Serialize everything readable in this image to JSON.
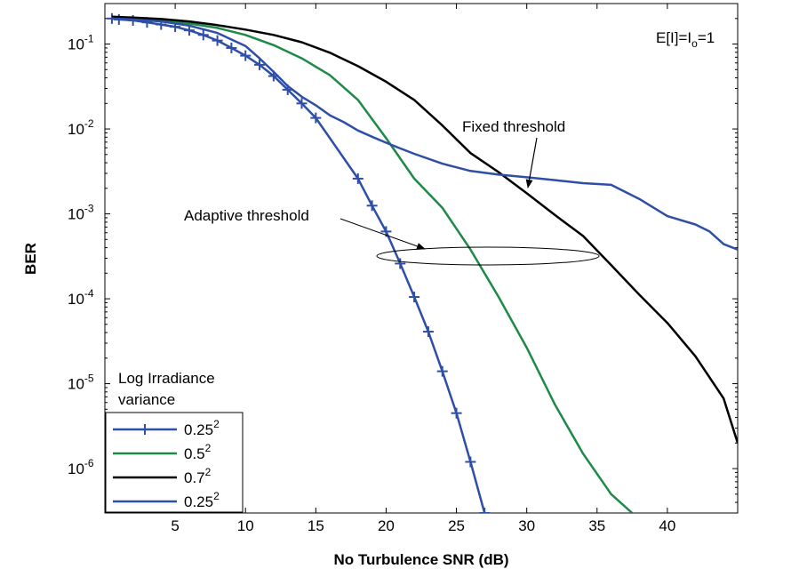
{
  "chart_data": {
    "type": "line",
    "xlabel": "No Turbulence SNR   (dB)",
    "ylabel": "BER",
    "xlim": [
      0,
      45
    ],
    "ylim": [
      3e-07,
      0.3
    ],
    "yscale": "log",
    "grid": false,
    "x_ticks": [
      5,
      10,
      15,
      20,
      25,
      30,
      35,
      40
    ],
    "y_ticks": [
      1e-06,
      1e-05,
      0.0001,
      0.001,
      0.01,
      0.1
    ],
    "legend": {
      "title_lines": [
        "Log Irradiance",
        "variance"
      ],
      "placement": "bottom-left"
    },
    "series": [
      {
        "name": "0.25",
        "name_exp": "2",
        "color": "#2e4fa5",
        "marker": "plus",
        "x": [
          0.5,
          1,
          2,
          3,
          4,
          5,
          6,
          7,
          8,
          9,
          10,
          11,
          12,
          13,
          14,
          15,
          18,
          19,
          20,
          21,
          22,
          23,
          24,
          25,
          26,
          27
        ],
        "y": [
          0.2,
          0.195,
          0.19,
          0.18,
          0.17,
          0.16,
          0.145,
          0.128,
          0.11,
          0.09,
          0.073,
          0.057,
          0.042,
          0.029,
          0.02,
          0.0135,
          0.0026,
          0.00125,
          0.00062,
          0.00026,
          0.000105,
          4.1e-05,
          1.4e-05,
          4.5e-06,
          1.2e-06,
          3e-07
        ]
      },
      {
        "name": "0.5",
        "name_exp": "2",
        "color": "#1e8a48",
        "marker": "none",
        "x": [
          0.5,
          2,
          4,
          6,
          8,
          10,
          12,
          14,
          16,
          18,
          20,
          22,
          24,
          26,
          28,
          30,
          32,
          34,
          36,
          37.5
        ],
        "y": [
          0.21,
          0.2,
          0.19,
          0.175,
          0.155,
          0.128,
          0.097,
          0.068,
          0.043,
          0.022,
          0.0078,
          0.0026,
          0.00118,
          0.00038,
          0.000105,
          2.65e-05,
          5.7e-06,
          1.5e-06,
          5e-07,
          3e-07
        ]
      },
      {
        "name": "0.7",
        "name_exp": "2",
        "color": "#000000",
        "marker": "none",
        "x": [
          0.5,
          2,
          4,
          6,
          8,
          10,
          12,
          14,
          16,
          18,
          20,
          22,
          24,
          26,
          28,
          30,
          32,
          34,
          36,
          38,
          40,
          42,
          44,
          45
        ],
        "y": [
          0.21,
          0.205,
          0.197,
          0.185,
          0.167,
          0.148,
          0.128,
          0.105,
          0.079,
          0.055,
          0.036,
          0.022,
          0.011,
          0.0052,
          0.0031,
          0.00175,
          0.00097,
          0.00055,
          0.00025,
          0.000112,
          5.2e-05,
          2.1e-05,
          6.7e-06,
          2e-06
        ]
      },
      {
        "name": "0.25",
        "name_exp": "2",
        "color": "#2e4fa5",
        "marker": "none",
        "x": [
          0.5,
          2,
          4,
          6,
          8,
          10,
          11,
          12,
          13,
          14,
          15,
          16,
          17,
          18,
          19,
          20,
          21,
          22,
          24,
          26,
          28,
          30,
          32,
          34,
          36,
          38,
          40,
          42,
          43,
          44,
          45
        ],
        "y": [
          0.2,
          0.195,
          0.185,
          0.165,
          0.135,
          0.095,
          0.068,
          0.047,
          0.032,
          0.024,
          0.019,
          0.0145,
          0.012,
          0.0096,
          0.0081,
          0.0069,
          0.0059,
          0.0051,
          0.0039,
          0.0032,
          0.0029,
          0.0027,
          0.0025,
          0.0023,
          0.0022,
          0.0015,
          0.00094,
          0.00075,
          0.00062,
          0.00044,
          0.00038
        ]
      }
    ],
    "annotations": {
      "top_right": {
        "main": "E[I]=I",
        "sub": "o",
        "tail": "=1"
      },
      "fixed": "Fixed threshold",
      "adaptive": "Adaptive threshold"
    }
  }
}
